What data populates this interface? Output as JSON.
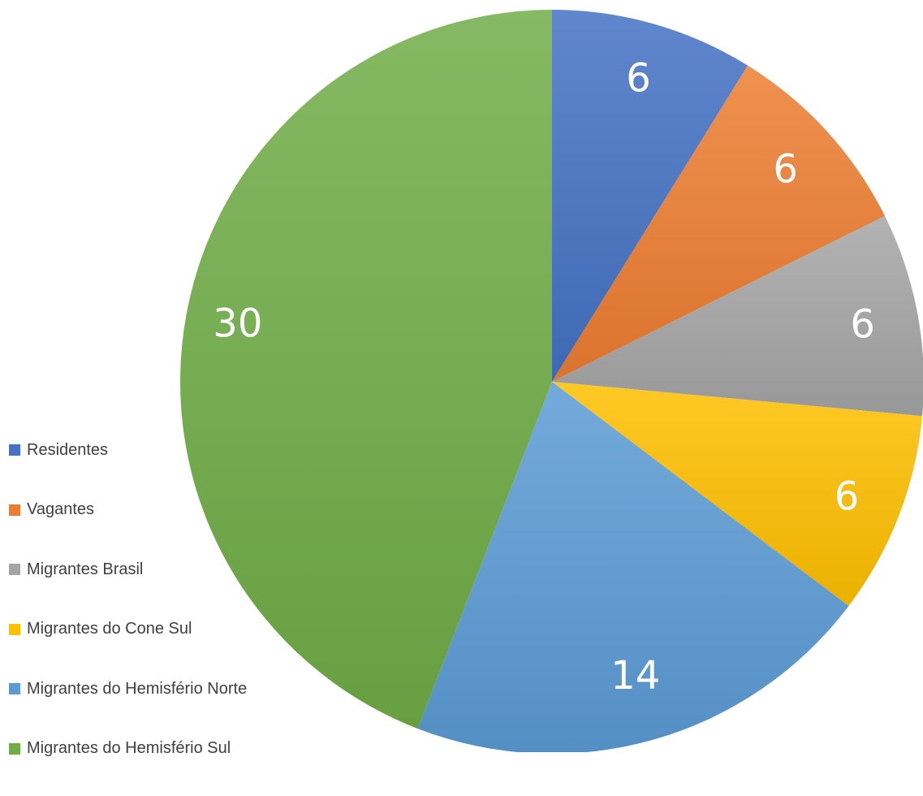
{
  "chart_data": {
    "type": "pie",
    "title": "",
    "categories": [
      "Residentes",
      "Vagantes",
      "Migrantes Brasil",
      "Migrantes do Cone Sul",
      "Migrantes do Hemisfério Norte",
      "Migrantes do Hemisfério Sul"
    ],
    "values": [
      6,
      6,
      6,
      6,
      14,
      30
    ],
    "data_labels": [
      "6",
      "6",
      "6",
      "6",
      "14",
      "30"
    ],
    "colors": [
      "#4472c4",
      "#ed7d31",
      "#a5a5a5",
      "#ffc000",
      "#5b9bd5",
      "#70ad47"
    ],
    "start_angle_deg": 0,
    "direction": "clockwise",
    "legend_position": "left",
    "grid": false
  }
}
